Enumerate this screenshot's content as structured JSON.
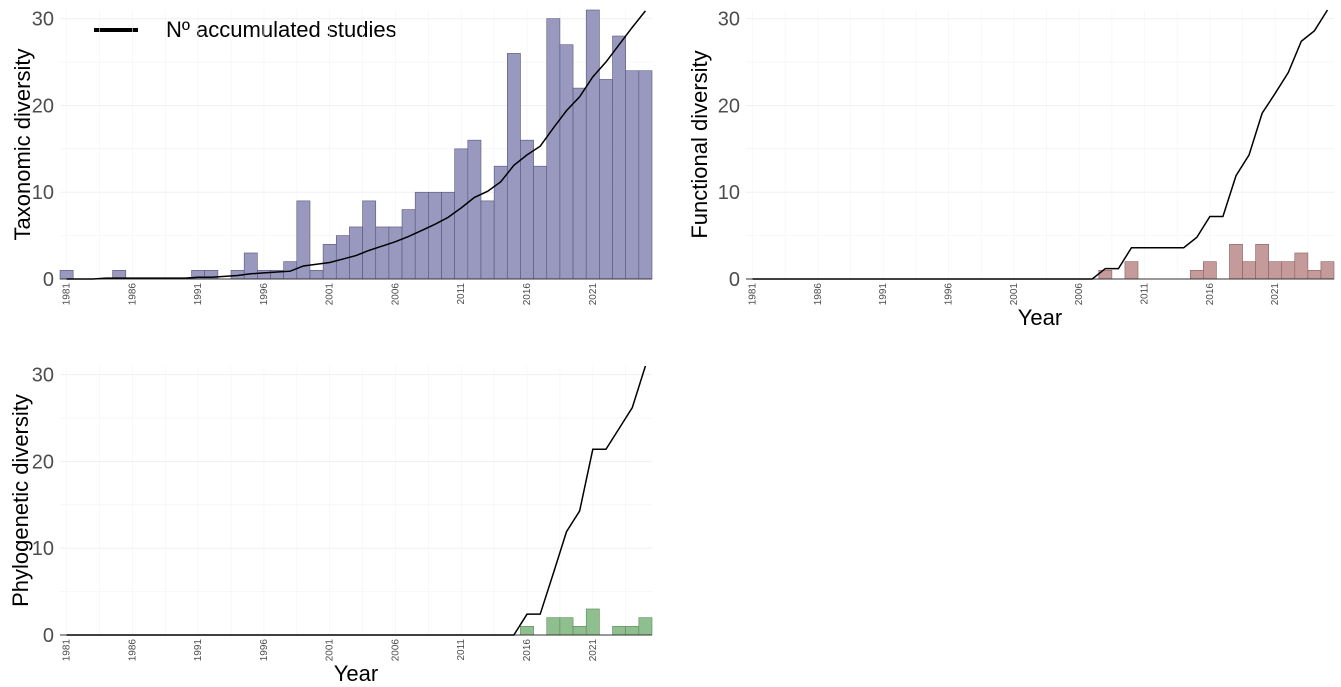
{
  "legend": {
    "label": "Nº accumulated studies",
    "line_color": "#000000"
  },
  "chart_data": [
    {
      "id": "taxonomic",
      "type": "bar",
      "ylabel": "Taxonomic diversity",
      "xlabel": "",
      "bar_color": "#9999c0",
      "bar_edge": "#55557a",
      "ylim": [
        0,
        31
      ],
      "yticks": [
        0,
        10,
        20,
        30
      ],
      "xrange": [
        1981,
        2025
      ],
      "xticks": [
        1981,
        1986,
        1991,
        1996,
        2001,
        2006,
        2011,
        2016,
        2021
      ],
      "x": [
        1981,
        1982,
        1983,
        1984,
        1985,
        1986,
        1987,
        1988,
        1989,
        1990,
        1991,
        1992,
        1993,
        1994,
        1995,
        1996,
        1997,
        1998,
        1999,
        2000,
        2001,
        2002,
        2003,
        2004,
        2005,
        2006,
        2007,
        2008,
        2009,
        2010,
        2011,
        2012,
        2013,
        2014,
        2015,
        2016,
        2017,
        2018,
        2019,
        2020,
        2021,
        2022,
        2023,
        2024,
        2025
      ],
      "values": [
        1,
        0,
        0,
        0,
        1,
        0,
        0,
        0,
        0,
        0,
        1,
        1,
        0,
        1,
        3,
        1,
        1,
        2,
        9,
        1,
        4,
        5,
        6,
        9,
        6,
        6,
        8,
        10,
        10,
        10,
        15,
        16,
        9,
        13,
        26,
        16,
        13,
        30,
        27,
        22,
        31,
        23,
        28,
        24,
        24
      ],
      "accumulated": {
        "x": [
          1981,
          1982,
          1983,
          1984,
          1985,
          1986,
          1987,
          1988,
          1989,
          1990,
          1991,
          1992,
          1993,
          1994,
          1995,
          1996,
          1997,
          1998,
          1999,
          2000,
          2001,
          2002,
          2003,
          2004,
          2005,
          2006,
          2007,
          2008,
          2009,
          2010,
          2011,
          2012,
          2013,
          2014,
          2015,
          2016,
          2017,
          2018,
          2019,
          2020,
          2021,
          2022,
          2023,
          2024,
          2025
        ],
        "y": [
          0,
          0,
          0,
          0.1,
          0.1,
          0.1,
          0.1,
          0.1,
          0.1,
          0.1,
          0.2,
          0.2,
          0.3,
          0.4,
          0.6,
          0.7,
          0.8,
          0.9,
          1.5,
          1.7,
          1.9,
          2.3,
          2.7,
          3.3,
          3.8,
          4.3,
          4.9,
          5.6,
          6.3,
          7.1,
          8.2,
          9.4,
          10.1,
          11.2,
          13.1,
          14.3,
          15.3,
          17.4,
          19.4,
          21.0,
          23.3,
          25.0,
          27.0,
          29.0,
          30.9
        ]
      }
    },
    {
      "id": "functional",
      "type": "bar",
      "ylabel": "Functional diversity",
      "xlabel": "Year",
      "bar_color": "#c49a9a",
      "bar_edge": "#8a5f5f",
      "ylim": [
        0,
        31
      ],
      "yticks": [
        0,
        10,
        20,
        30
      ],
      "xrange": [
        1981,
        2025
      ],
      "xticks": [
        1981,
        1986,
        1991,
        1996,
        2001,
        2006,
        2011,
        2016,
        2021
      ],
      "x": [
        2008,
        2010,
        2015,
        2016,
        2018,
        2019,
        2020,
        2021,
        2022,
        2023,
        2024,
        2025
      ],
      "values": [
        1,
        2,
        1,
        2,
        4,
        2,
        4,
        2,
        2,
        3,
        1,
        2
      ],
      "accumulated": {
        "x": [
          1981,
          2007,
          2008,
          2009,
          2010,
          2014,
          2015,
          2016,
          2017,
          2018,
          2019,
          2020,
          2021,
          2022,
          2023,
          2024,
          2025
        ],
        "y": [
          0,
          0,
          1.2,
          1.2,
          3.6,
          3.6,
          4.8,
          7.2,
          7.2,
          11.9,
          14.3,
          19.1,
          21.4,
          23.8,
          27.4,
          28.6,
          31.0
        ]
      }
    },
    {
      "id": "phylogenetic",
      "type": "bar",
      "ylabel": "Phylogenetic diversity",
      "xlabel": "Year",
      "bar_color": "#8fbf8f",
      "bar_edge": "#5a8a5a",
      "ylim": [
        0,
        31
      ],
      "yticks": [
        0,
        10,
        20,
        30
      ],
      "xrange": [
        1981,
        2025
      ],
      "xticks": [
        1981,
        1986,
        1991,
        1996,
        2001,
        2006,
        2011,
        2016,
        2021
      ],
      "x": [
        2016,
        2018,
        2019,
        2020,
        2021,
        2023,
        2024,
        2025
      ],
      "values": [
        1,
        2,
        2,
        1,
        3,
        1,
        1,
        2
      ],
      "accumulated": {
        "x": [
          1981,
          2015,
          2016,
          2017,
          2018,
          2019,
          2020,
          2021,
          2022,
          2023,
          2024,
          2025
        ],
        "y": [
          0,
          0,
          2.4,
          2.4,
          7.1,
          11.9,
          14.3,
          21.4,
          21.4,
          23.8,
          26.2,
          31.0
        ]
      }
    }
  ]
}
